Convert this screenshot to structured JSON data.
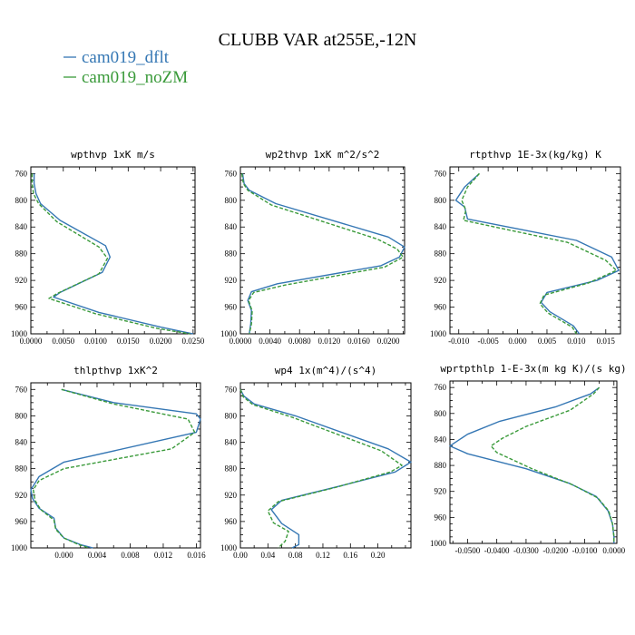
{
  "title": "CLUBB VAR at255E,-12N",
  "colors": {
    "cam019_dflt": "#3577b4",
    "cam019_noZM": "#3a9a3a"
  },
  "legend": [
    {
      "name": "cam019_dflt",
      "color": "#3577b4",
      "dash": ""
    },
    {
      "name": "cam019_noZM",
      "color": "#3a9a3a",
      "dash": "4,2"
    }
  ],
  "chart_data": [
    {
      "type": "line",
      "title": "wpthvp   1xK m/s",
      "ylim": [
        1000,
        750
      ],
      "yticks": [
        760,
        800,
        840,
        880,
        920,
        960,
        1000
      ],
      "xlim": [
        0,
        0.0253
      ],
      "xticks": [
        0,
        0.005,
        0.01,
        0.015,
        0.02,
        0.025
      ],
      "xticklabels": [
        "0.0000",
        "0.0050",
        "0.0100",
        "0.0150",
        "0.0200",
        "0.0250"
      ],
      "series": [
        {
          "name": "cam019_dflt",
          "points": [
            [
              0.0005,
              760
            ],
            [
              0.0005,
              775
            ],
            [
              0.0008,
              790
            ],
            [
              0.0015,
              805
            ],
            [
              0.0045,
              830
            ],
            [
              0.0115,
              868
            ],
            [
              0.0122,
              885
            ],
            [
              0.011,
              908
            ],
            [
              0.0045,
              938
            ],
            [
              0.0035,
              945
            ],
            [
              0.0105,
              968
            ],
            [
              0.02,
              990
            ],
            [
              0.025,
              1000
            ]
          ]
        },
        {
          "name": "cam019_noZM",
          "points": [
            [
              0.0002,
              760
            ],
            [
              0.0002,
              775
            ],
            [
              0.0004,
              790
            ],
            [
              0.0012,
              805
            ],
            [
              0.004,
              832
            ],
            [
              0.0105,
              870
            ],
            [
              0.0118,
              887
            ],
            [
              0.0105,
              910
            ],
            [
              0.004,
              940
            ],
            [
              0.0028,
              947
            ],
            [
              0.01,
              970
            ],
            [
              0.0195,
              992
            ],
            [
              0.0245,
              1000
            ]
          ]
        }
      ]
    },
    {
      "type": "line",
      "title": "wp2thvp   1xK m^2/s^2",
      "ylim": [
        1000,
        750
      ],
      "yticks": [
        760,
        800,
        840,
        880,
        920,
        960,
        1000
      ],
      "xlim": [
        0,
        0.0222
      ],
      "xticks": [
        0,
        0.004,
        0.008,
        0.012,
        0.016,
        0.02
      ],
      "xticklabels": [
        "0.0000",
        "0.0040",
        "0.0080",
        "0.0120",
        "0.0160",
        "0.0200"
      ],
      "series": [
        {
          "name": "cam019_dflt",
          "points": [
            [
              0.0003,
              760
            ],
            [
              0.0005,
              775
            ],
            [
              0.0012,
              785
            ],
            [
              0.0048,
              805
            ],
            [
              0.02,
              855
            ],
            [
              0.0222,
              870
            ],
            [
              0.0215,
              885
            ],
            [
              0.019,
              898
            ],
            [
              0.005,
              925
            ],
            [
              0.0015,
              937
            ],
            [
              0.001,
              950
            ],
            [
              0.0015,
              965
            ],
            [
              0.0014,
              985
            ],
            [
              0.0012,
              1000
            ]
          ]
        },
        {
          "name": "cam019_noZM",
          "points": [
            [
              0.0002,
              760
            ],
            [
              0.0004,
              775
            ],
            [
              0.001,
              785
            ],
            [
              0.0042,
              807
            ],
            [
              0.0185,
              858
            ],
            [
              0.0212,
              873
            ],
            [
              0.022,
              885
            ],
            [
              0.0195,
              900
            ],
            [
              0.006,
              927
            ],
            [
              0.0018,
              938
            ],
            [
              0.0011,
              950
            ],
            [
              0.0016,
              966
            ],
            [
              0.0015,
              985
            ],
            [
              0.0012,
              1000
            ]
          ]
        }
      ]
    },
    {
      "type": "line",
      "title": "rtpthvp   1E-3x(kg/kg) K",
      "ylim": [
        1000,
        750
      ],
      "yticks": [
        760,
        800,
        840,
        880,
        920,
        960,
        1000
      ],
      "xlim": [
        -0.0115,
        0.0175
      ],
      "xticks": [
        -0.01,
        -0.005,
        0.0,
        0.005,
        0.01,
        0.015
      ],
      "xticklabels": [
        "-0.010",
        "-0.005",
        "0.000",
        "0.005",
        "0.010",
        "0.015"
      ],
      "series": [
        {
          "name": "cam019_dflt",
          "points": [
            [
              -0.0065,
              760
            ],
            [
              -0.009,
              780
            ],
            [
              -0.0105,
              800
            ],
            [
              -0.009,
              810
            ],
            [
              -0.0085,
              828
            ],
            [
              0.01,
              860
            ],
            [
              0.016,
              885
            ],
            [
              0.0172,
              905
            ],
            [
              0.0135,
              920
            ],
            [
              0.005,
              938
            ],
            [
              0.004,
              953
            ],
            [
              0.0055,
              967
            ],
            [
              0.0095,
              988
            ],
            [
              0.0105,
              1000
            ]
          ]
        },
        {
          "name": "cam019_noZM",
          "points": [
            [
              -0.0065,
              760
            ],
            [
              -0.0085,
              780
            ],
            [
              -0.0095,
              800
            ],
            [
              -0.0088,
              815
            ],
            [
              -0.0092,
              830
            ],
            [
              0.0085,
              863
            ],
            [
              0.015,
              890
            ],
            [
              0.0168,
              905
            ],
            [
              0.012,
              924
            ],
            [
              0.0045,
              942
            ],
            [
              0.0038,
              955
            ],
            [
              0.0052,
              969
            ],
            [
              0.0093,
              990
            ],
            [
              0.01,
              1000
            ]
          ]
        }
      ]
    },
    {
      "type": "line",
      "title": "thlpthvp   1xK^2",
      "ylim": [
        1000,
        750
      ],
      "yticks": [
        760,
        800,
        840,
        880,
        920,
        960,
        1000
      ],
      "xlim": [
        -0.004,
        0.0165
      ],
      "xticks": [
        0.0,
        0.004,
        0.008,
        0.012,
        0.016
      ],
      "xticklabels": [
        "0.000",
        "0.004",
        "0.008",
        "0.012",
        "0.016"
      ],
      "series": [
        {
          "name": "cam019_dflt",
          "points": [
            [
              -0.0003,
              760
            ],
            [
              0.006,
              780
            ],
            [
              0.016,
              797
            ],
            [
              0.0165,
              805
            ],
            [
              0.016,
              825
            ],
            [
              0.0,
              870
            ],
            [
              -0.003,
              892
            ],
            [
              -0.004,
              912
            ],
            [
              -0.0038,
              925
            ],
            [
              -0.003,
              940
            ],
            [
              -0.0012,
              955
            ],
            [
              -0.001,
              970
            ],
            [
              0.0,
              985
            ],
            [
              0.002,
              995
            ],
            [
              0.0035,
              1000
            ]
          ]
        },
        {
          "name": "cam019_noZM",
          "points": [
            [
              -0.0003,
              760
            ],
            [
              0.006,
              782
            ],
            [
              0.015,
              805
            ],
            [
              0.0158,
              825
            ],
            [
              0.013,
              850
            ],
            [
              0.0,
              880
            ],
            [
              -0.003,
              898
            ],
            [
              -0.0037,
              912
            ],
            [
              -0.0035,
              928
            ],
            [
              -0.0028,
              942
            ],
            [
              -0.0012,
              958
            ],
            [
              -0.001,
              972
            ],
            [
              0.0,
              985
            ],
            [
              0.0018,
              995
            ],
            [
              0.003,
              1000
            ]
          ]
        }
      ]
    },
    {
      "type": "line",
      "title": "wp4   1x(m^4)/(s^4)",
      "ylim": [
        1000,
        750
      ],
      "yticks": [
        760,
        800,
        840,
        880,
        920,
        960,
        1000
      ],
      "xlim": [
        0,
        0.248
      ],
      "xticks": [
        0.0,
        0.04,
        0.08,
        0.12,
        0.16,
        0.2
      ],
      "xticklabels": [
        "0.00",
        "0.04",
        "0.08",
        "0.12",
        "0.16",
        "0.20"
      ],
      "series": [
        {
          "name": "cam019_dflt",
          "points": [
            [
              0.0,
              760
            ],
            [
              0.005,
              770
            ],
            [
              0.02,
              782
            ],
            [
              0.08,
              800
            ],
            [
              0.215,
              850
            ],
            [
              0.248,
              870
            ],
            [
              0.225,
              885
            ],
            [
              0.15,
              905
            ],
            [
              0.06,
              928
            ],
            [
              0.045,
              942
            ],
            [
              0.06,
              963
            ],
            [
              0.085,
              980
            ],
            [
              0.085,
              995
            ],
            [
              0.075,
              1000
            ]
          ]
        },
        {
          "name": "cam019_noZM",
          "points": [
            [
              0.0,
              760
            ],
            [
              0.004,
              771
            ],
            [
              0.018,
              783
            ],
            [
              0.075,
              802
            ],
            [
              0.205,
              853
            ],
            [
              0.235,
              875
            ],
            [
              0.218,
              885
            ],
            [
              0.14,
              908
            ],
            [
              0.055,
              930
            ],
            [
              0.04,
              944
            ],
            [
              0.048,
              962
            ],
            [
              0.07,
              975
            ],
            [
              0.065,
              990
            ],
            [
              0.055,
              1000
            ]
          ]
        }
      ]
    },
    {
      "type": "line",
      "title": "wprtpthlp   1-E-3x(m kg K)/(s kg)",
      "ylim": [
        1000,
        750
      ],
      "yticks": [
        760,
        800,
        840,
        880,
        920,
        960,
        1000
      ],
      "xlim": [
        -0.056,
        0.001
      ],
      "xticks": [
        -0.05,
        -0.04,
        -0.03,
        -0.02,
        -0.01,
        0.0
      ],
      "xticklabels": [
        "-0.0500",
        "-0.0400",
        "-0.0300",
        "-0.0200",
        "-0.0100",
        "0.0000"
      ],
      "series": [
        {
          "name": "cam019_dflt",
          "points": [
            [
              -0.005,
              760
            ],
            [
              -0.008,
              770
            ],
            [
              -0.02,
              790
            ],
            [
              -0.039,
              812
            ],
            [
              -0.05,
              832
            ],
            [
              -0.056,
              850
            ],
            [
              -0.05,
              862
            ],
            [
              -0.03,
              885
            ],
            [
              -0.015,
              908
            ],
            [
              -0.006,
              928
            ],
            [
              -0.002,
              950
            ],
            [
              -0.0005,
              970
            ],
            [
              0.0,
              990
            ],
            [
              0.0,
              1000
            ]
          ]
        },
        {
          "name": "cam019_noZM",
          "points": [
            [
              -0.005,
              760
            ],
            [
              -0.007,
              770
            ],
            [
              -0.015,
              795
            ],
            [
              -0.03,
              820
            ],
            [
              -0.038,
              838
            ],
            [
              -0.042,
              850
            ],
            [
              -0.04,
              860
            ],
            [
              -0.028,
              885
            ],
            [
              -0.014,
              910
            ],
            [
              -0.0055,
              930
            ],
            [
              -0.0018,
              950
            ],
            [
              -0.0005,
              970
            ],
            [
              0.0,
              990
            ],
            [
              0.0,
              1000
            ]
          ]
        }
      ]
    }
  ]
}
